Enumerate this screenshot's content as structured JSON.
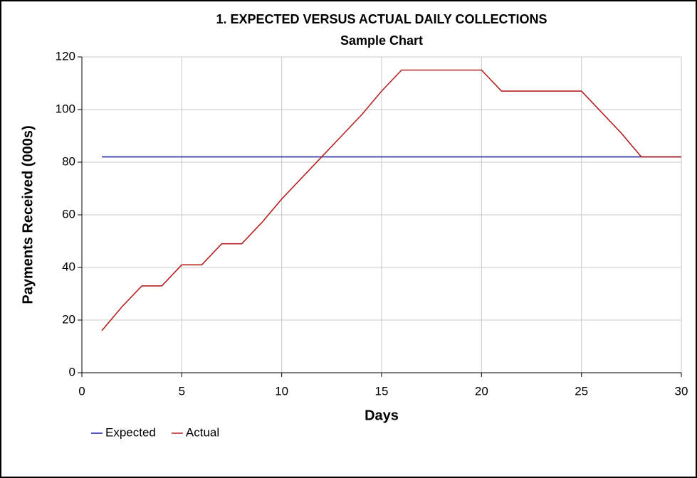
{
  "chart_data": {
    "type": "line",
    "title": "1. EXPECTED VERSUS ACTUAL DAILY COLLECTIONS",
    "subtitle": "Sample Chart",
    "x_label": "Days",
    "y_label": "Payments Received (000s)",
    "x": [
      1,
      2,
      3,
      4,
      5,
      6,
      7,
      8,
      9,
      10,
      11,
      12,
      13,
      14,
      15,
      16,
      17,
      18,
      19,
      20,
      21,
      22,
      23,
      24,
      25,
      26,
      27,
      28,
      29,
      30
    ],
    "series": [
      {
        "name": "Expected",
        "color": "#2a2aa8",
        "values": [
          82,
          82,
          82,
          82,
          82,
          82,
          82,
          82,
          82,
          82,
          82,
          82,
          82,
          82,
          82,
          82,
          82,
          82,
          82,
          82,
          82,
          82,
          82,
          82,
          82,
          82,
          82,
          82,
          82,
          82
        ]
      },
      {
        "name": "Actual",
        "color": "#b22222",
        "values": [
          16,
          25,
          33,
          33,
          41,
          41,
          49,
          49,
          57,
          66,
          74,
          82,
          90,
          98,
          107,
          115,
          115,
          115,
          115,
          115,
          107,
          107,
          107,
          107,
          107,
          99,
          91,
          82,
          82,
          82
        ]
      }
    ],
    "xlim": [
      0,
      30
    ],
    "xticks": [
      0,
      5,
      10,
      15,
      20,
      25,
      30
    ],
    "ylim": [
      0,
      120
    ],
    "yticks": [
      0,
      20,
      40,
      60,
      80,
      100,
      120
    ],
    "grid": true,
    "legend": "bottom-left"
  }
}
